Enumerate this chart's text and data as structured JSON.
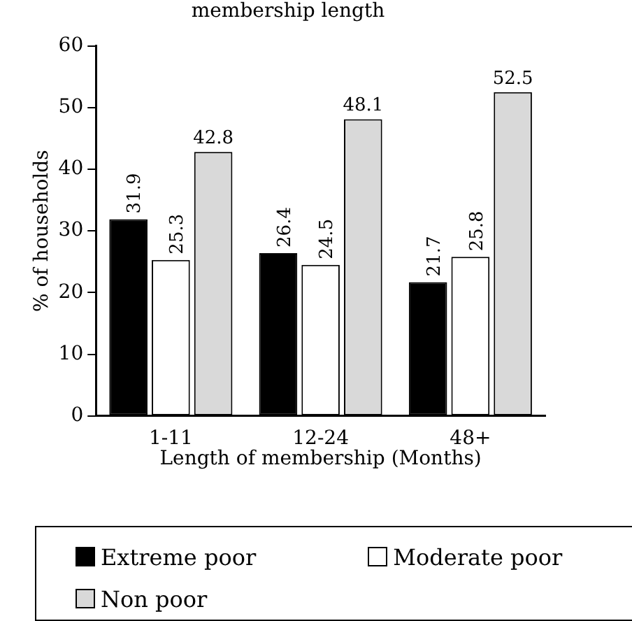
{
  "chart_data": {
    "type": "bar",
    "title": "membership length",
    "xlabel": "Length of membership (Months)",
    "ylabel": "% of households",
    "categories": [
      "1-11",
      "12-24",
      "48+"
    ],
    "series": [
      {
        "name": "Extreme poor",
        "color": "#000000",
        "values": [
          31.9,
          26.4,
          21.7
        ]
      },
      {
        "name": "Moderate poor",
        "color": "#ffffff",
        "values": [
          25.3,
          24.5,
          25.8
        ]
      },
      {
        "name": "Non poor",
        "color": "#d9d9d9",
        "values": [
          42.8,
          48.1,
          52.5
        ]
      }
    ],
    "ylim": [
      0,
      60
    ],
    "yticks": [
      0,
      10,
      20,
      30,
      40,
      50,
      60
    ],
    "grid": false,
    "legend": "bottom",
    "data_labels": true
  }
}
